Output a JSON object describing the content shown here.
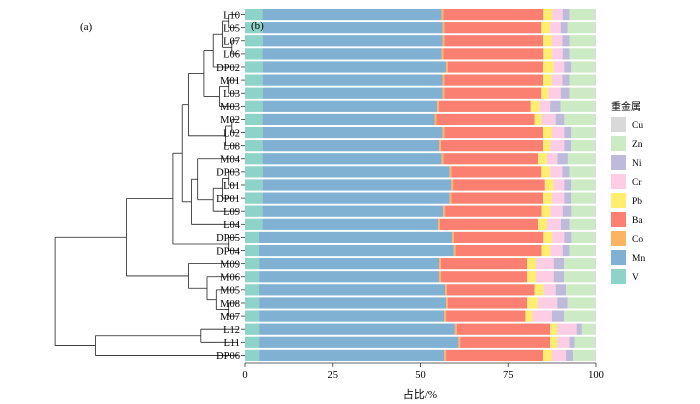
{
  "panel_a_label": "(a)",
  "panel_b_label": "(b)",
  "chart_data": {
    "type": "bar",
    "orientation": "horizontal",
    "stacked": true,
    "categories": [
      "L10",
      "L05",
      "L07",
      "L06",
      "DP02",
      "M01",
      "L03",
      "M03",
      "M02",
      "L02",
      "L08",
      "M04",
      "DP03",
      "L01",
      "DP01",
      "L09",
      "L04",
      "DP05",
      "DP04",
      "M09",
      "M06",
      "M05",
      "M08",
      "M07",
      "L12",
      "L11",
      "DP06"
    ],
    "series": [
      {
        "name": "V",
        "color": "#8dd3c7",
        "values": [
          5,
          5,
          5,
          5,
          5,
          5,
          5,
          5,
          5,
          5,
          5,
          5,
          5,
          5,
          5,
          5,
          5,
          4,
          4,
          4,
          4,
          4,
          4,
          4,
          4,
          4,
          4
        ]
      },
      {
        "name": "Mn",
        "color": "#80b1d3",
        "values": [
          51,
          51,
          51,
          51,
          52,
          51,
          51,
          49.5,
          49,
          51,
          50,
          51,
          53,
          53.5,
          53,
          51.5,
          50,
          55,
          55.5,
          51,
          51,
          53,
          53,
          52.5,
          55.5,
          56.5,
          52.5
        ]
      },
      {
        "name": "Co",
        "color": "#fdb462",
        "values": [
          0.5,
          0.5,
          0.5,
          0.5,
          0.5,
          0.5,
          0.5,
          0.5,
          0.5,
          0.5,
          0.5,
          0.5,
          0.5,
          0.5,
          0.5,
          0.5,
          0.5,
          0.5,
          0.5,
          0.5,
          0.5,
          0.5,
          0.5,
          0.5,
          0.5,
          0.5,
          0.5
        ]
      },
      {
        "name": "Ba",
        "color": "#fb8072",
        "values": [
          28.5,
          27.5,
          28,
          28.5,
          27,
          28,
          27.5,
          26,
          28,
          28,
          29,
          27,
          25.5,
          26,
          26,
          27.5,
          28,
          25.5,
          24.5,
          24.5,
          24.5,
          25,
          22.5,
          22.5,
          26.5,
          25.5,
          27.5
        ]
      },
      {
        "name": "Pb",
        "color": "#ffed6f",
        "values": [
          2.5,
          2.5,
          2.5,
          2.5,
          3,
          2.5,
          2,
          2.5,
          2,
          2.5,
          2,
          2.5,
          2.5,
          2.5,
          2.5,
          2.5,
          2.5,
          2.5,
          2.5,
          2.5,
          2.5,
          2.5,
          3,
          2,
          2,
          2,
          2.5
        ]
      },
      {
        "name": "Cr",
        "color": "#fccde5",
        "values": [
          3,
          3,
          3,
          3,
          3,
          3,
          3.5,
          3,
          4,
          3.5,
          4,
          3,
          3.5,
          3,
          3.5,
          3.5,
          4,
          3.5,
          3.5,
          5,
          5,
          3.5,
          5.5,
          5.5,
          5.5,
          3.5,
          4
        ]
      },
      {
        "name": "Ni",
        "color": "#bebada",
        "values": [
          2,
          2,
          2,
          2,
          2,
          2,
          2.5,
          3,
          2.5,
          2,
          2,
          3,
          2,
          2,
          2,
          2.5,
          2.5,
          2,
          2,
          3,
          3,
          3,
          3,
          3.5,
          1.5,
          1.5,
          2
        ]
      },
      {
        "name": "Zn",
        "color": "#ccebc5",
        "values": [
          7,
          7.5,
          7,
          7,
          6.5,
          7,
          7,
          9.5,
          8.5,
          6.5,
          6.5,
          7.5,
          7,
          6.5,
          6.5,
          6.5,
          7,
          6.5,
          7,
          8.5,
          8.5,
          8,
          7.5,
          8.5,
          3.5,
          5.5,
          6
        ]
      },
      {
        "name": "Cu",
        "color": "#d9d9d9",
        "values": [
          0.5,
          0.5,
          0.5,
          0.5,
          0.5,
          0.5,
          0.5,
          0.5,
          0.5,
          0.5,
          0.5,
          0.5,
          0.5,
          0.5,
          0.5,
          0.5,
          0.5,
          0.5,
          0.5,
          0.5,
          0.5,
          0.5,
          0.5,
          0.5,
          0.5,
          0.5,
          0.5
        ]
      }
    ],
    "legend_title": "重金属",
    "legend_order": [
      "Cu",
      "Zn",
      "Ni",
      "Cr",
      "Pb",
      "Ba",
      "Co",
      "Mn",
      "V"
    ],
    "legend_position": "right",
    "xlabel": "占比/%",
    "xlim": [
      0,
      100
    ],
    "xticks": [
      "0",
      "25",
      "50",
      "75",
      "100"
    ],
    "grid": false
  }
}
